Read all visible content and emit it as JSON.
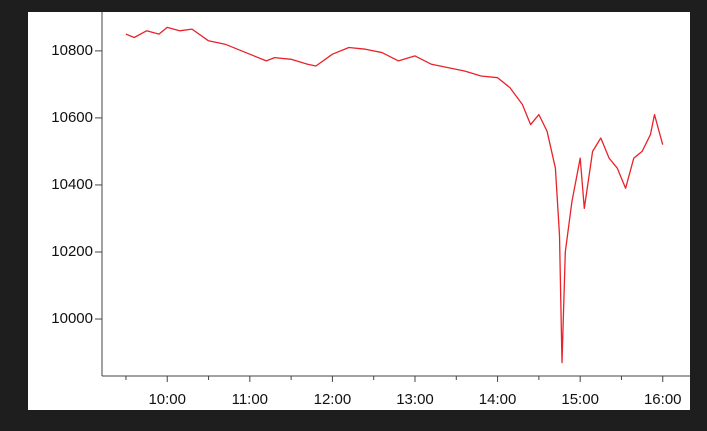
{
  "chart_data": {
    "type": "line",
    "x": [
      9.5,
      9.6,
      9.75,
      9.9,
      10.0,
      10.15,
      10.3,
      10.5,
      10.7,
      11.0,
      11.2,
      11.3,
      11.5,
      11.7,
      11.8,
      12.0,
      12.2,
      12.4,
      12.6,
      12.8,
      13.0,
      13.2,
      13.4,
      13.6,
      13.8,
      14.0,
      14.15,
      14.3,
      14.4,
      14.5,
      14.6,
      14.7,
      14.75,
      14.78,
      14.82,
      14.9,
      15.0,
      15.05,
      15.15,
      15.25,
      15.35,
      15.45,
      15.55,
      15.65,
      15.75,
      15.85,
      15.9,
      16.0
    ],
    "values": [
      10850,
      10840,
      10860,
      10850,
      10870,
      10860,
      10865,
      10830,
      10820,
      10790,
      10770,
      10780,
      10775,
      10760,
      10755,
      10790,
      10810,
      10805,
      10795,
      10770,
      10785,
      10760,
      10750,
      10740,
      10725,
      10720,
      10690,
      10640,
      10580,
      10610,
      10560,
      10450,
      10250,
      9870,
      10200,
      10350,
      10480,
      10330,
      10500,
      10540,
      10480,
      10450,
      10390,
      10480,
      10500,
      10550,
      10610,
      10520
    ],
    "color": "#e8232a",
    "xlim": [
      9.21,
      16.33
    ],
    "xticks": [
      {
        "value": 10,
        "label": "10:00"
      },
      {
        "value": 11,
        "label": "11:00"
      },
      {
        "value": 12,
        "label": "12:00"
      },
      {
        "value": 13,
        "label": "13:00"
      },
      {
        "value": 14,
        "label": "14:00"
      },
      {
        "value": 15,
        "label": "15:00"
      },
      {
        "value": 16,
        "label": "16:00"
      }
    ],
    "xminorticks": [
      9.5,
      10.5,
      11.5,
      12.5,
      13.5,
      14.5,
      15.5
    ],
    "ylim": [
      9830,
      10916
    ],
    "yticks": [
      10000,
      10200,
      10400,
      10600,
      10800
    ],
    "grid": false
  }
}
